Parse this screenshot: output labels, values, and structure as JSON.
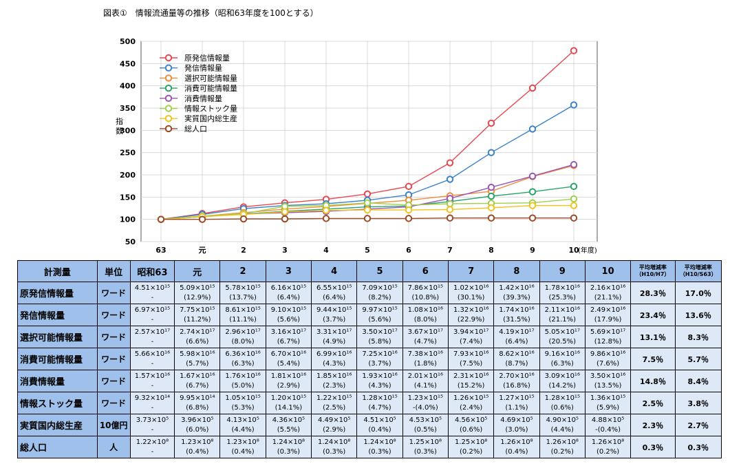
{
  "title": "図表①　情報流通量等の推移（昭和63年度を100とする）",
  "chart_data": {
    "type": "line",
    "x": [
      "63",
      "元",
      "2",
      "3",
      "4",
      "5",
      "6",
      "7",
      "8",
      "9",
      "10"
    ],
    "x_unit": "(年度)",
    "ylabel": "指数",
    "ylim": [
      50,
      500
    ],
    "yticks": [
      50,
      100,
      150,
      200,
      250,
      300,
      350,
      400,
      450,
      500
    ],
    "grid": true,
    "legend_position": "top-left",
    "series": [
      {
        "name": "原発信情報量",
        "color": "#e8474f",
        "values": [
          100,
          113,
          128,
          137,
          145,
          157,
          174,
          227,
          316,
          395,
          479
        ]
      },
      {
        "name": "発信情報量",
        "color": "#3b82c9",
        "values": [
          100,
          111,
          124,
          131,
          135,
          143,
          155,
          190,
          250,
          303,
          357
        ]
      },
      {
        "name": "選択可能情報量",
        "color": "#f08c3a",
        "values": [
          100,
          107,
          115,
          123,
          129,
          136,
          143,
          153,
          163,
          196,
          221
        ]
      },
      {
        "name": "消費可能情報量",
        "color": "#2aa36b",
        "values": [
          100,
          106,
          112,
          118,
          123,
          128,
          130,
          140,
          152,
          162,
          174
        ]
      },
      {
        "name": "消費情報量",
        "color": "#9a55b5",
        "values": [
          100,
          106,
          112,
          115,
          118,
          123,
          128,
          147,
          172,
          197,
          223
        ]
      },
      {
        "name": "情報ストック量",
        "color": "#a2cf4a",
        "values": [
          100,
          107,
          113,
          129,
          131,
          137,
          132,
          135,
          136,
          137,
          146
        ]
      },
      {
        "name": "実質国内総生産",
        "color": "#f2c21b",
        "values": [
          100,
          106,
          111,
          117,
          120,
          121,
          121,
          122,
          126,
          131,
          131
        ]
      },
      {
        "name": "総人口",
        "color": "#9b4a25",
        "values": [
          100,
          100,
          101,
          101,
          102,
          102,
          102,
          103,
          103,
          103,
          103
        ]
      }
    ]
  },
  "table": {
    "headers": {
      "label": "計測量",
      "unit": "単位",
      "years": [
        "昭和63",
        "元",
        "2",
        "3",
        "4",
        "5",
        "6",
        "7",
        "8",
        "9",
        "10"
      ],
      "avg1": [
        "平均増減率",
        "（H10/H7）"
      ],
      "avg2": [
        "平均増減率",
        "（H10/S63）"
      ]
    },
    "rows": [
      {
        "label": "原発信情報量",
        "unit": "ワード",
        "cells": [
          [
            "4.51×10¹⁵",
            "-"
          ],
          [
            "5.09×10¹⁵",
            "(12.9%)"
          ],
          [
            "5.78×10¹⁵",
            "(13.7%)"
          ],
          [
            "6.16×10¹⁵",
            "(6.4%)"
          ],
          [
            "6.55×10¹⁵",
            "(6.4%)"
          ],
          [
            "7.09×10¹⁵",
            "(8.2%)"
          ],
          [
            "7.86×10¹⁵",
            "(10.8%)"
          ],
          [
            "1.02×10¹⁶",
            "(30.1%)"
          ],
          [
            "1.42×10¹⁶",
            "(39.3%)"
          ],
          [
            "1.78×10¹⁶",
            "(25.3%)"
          ],
          [
            "2.16×10¹⁶",
            "(21.1%)"
          ]
        ],
        "avg1": "28.3％",
        "avg2": "17.0％"
      },
      {
        "label": "発信情報量",
        "unit": "ワード",
        "cells": [
          [
            "6.97×10¹⁵",
            "-"
          ],
          [
            "7.75×10¹⁵",
            "(11.2%)"
          ],
          [
            "8.61×10¹⁵",
            "(11.1%)"
          ],
          [
            "9.10×10¹⁵",
            "(5.6%)"
          ],
          [
            "9.44×10¹⁵",
            "(3.7%)"
          ],
          [
            "9.97×10¹⁵",
            "(5.6%)"
          ],
          [
            "1.08×10¹⁶",
            "(8.0%)"
          ],
          [
            "1.32×10¹⁶",
            "(22.9%)"
          ],
          [
            "1.74×10¹⁶",
            "(31.5%)"
          ],
          [
            "2.11×10¹⁶",
            "(21.1%)"
          ],
          [
            "2.49×10¹⁶",
            "(17.9%)"
          ]
        ],
        "avg1": "23.4％",
        "avg2": "13.6％"
      },
      {
        "label": "選択可能情報量",
        "unit": "ワード",
        "cells": [
          [
            "2.57×10¹⁷",
            "-"
          ],
          [
            "2.74×10¹⁷",
            "(6.6%)"
          ],
          [
            "2.96×10¹⁷",
            "(8.0%)"
          ],
          [
            "3.16×10¹⁷",
            "(6.7%)"
          ],
          [
            "3.31×10¹⁷",
            "(4.9%)"
          ],
          [
            "3.50×10¹⁷",
            "(5.8%)"
          ],
          [
            "3.67×10¹⁷",
            "(4.7%)"
          ],
          [
            "3.94×10¹⁷",
            "(7.4%)"
          ],
          [
            "4.19×10¹⁷",
            "(6.4%)"
          ],
          [
            "5.05×10¹⁷",
            "(20.5%)"
          ],
          [
            "5.69×10¹⁷",
            "(12.8%)"
          ]
        ],
        "avg1": "13.1％",
        "avg2": "8.3％"
      },
      {
        "label": "消費可能情報量",
        "unit": "ワード",
        "cells": [
          [
            "5.66×10¹⁶",
            "-"
          ],
          [
            "5.98×10¹⁶",
            "(5.7%)"
          ],
          [
            "6.36×10¹⁶",
            "(6.3%)"
          ],
          [
            "6.70×10¹⁶",
            "(5.4%)"
          ],
          [
            "6.99×10¹⁶",
            "(4.3%)"
          ],
          [
            "7.25×10¹⁶",
            "(3.7%)"
          ],
          [
            "7.38×10¹⁶",
            "(1.8%)"
          ],
          [
            "7.93×10¹⁶",
            "(7.5%)"
          ],
          [
            "8.62×10¹⁶",
            "(8.7%)"
          ],
          [
            "9.16×10¹⁶",
            "(6.3%)"
          ],
          [
            "9.86×10¹⁶",
            "(7.6%)"
          ]
        ],
        "avg1": "7.5％",
        "avg2": "5.7％"
      },
      {
        "label": "消費情報量",
        "unit": "ワード",
        "cells": [
          [
            "1.57×10¹⁶",
            "-"
          ],
          [
            "1.67×10¹⁶",
            "(6.7%)"
          ],
          [
            "1.76×10¹⁶",
            "(5.0%)"
          ],
          [
            "1.81×10¹⁶",
            "(2.9%)"
          ],
          [
            "1.85×10¹⁶",
            "(2.3%)"
          ],
          [
            "1.93×10¹⁶",
            "(4.3%)"
          ],
          [
            "2.01×10¹⁶",
            "(4.1%)"
          ],
          [
            "2.31×10¹⁶",
            "(15.2%)"
          ],
          [
            "2.70×10¹⁶",
            "(16.8%)"
          ],
          [
            "3.09×10¹⁶",
            "(14.2%)"
          ],
          [
            "3.50×10¹⁶",
            "(13.5%)"
          ]
        ],
        "avg1": "14.8％",
        "avg2": "8.4％"
      },
      {
        "label": "情報ストック量",
        "unit": "ワード",
        "cells": [
          [
            "9.32×10¹⁴",
            "-"
          ],
          [
            "9.95×10¹⁴",
            "(6.8%)"
          ],
          [
            "1.05×10¹⁵",
            "(5.3%)"
          ],
          [
            "1.20×10¹⁵",
            "(14.1%)"
          ],
          [
            "1.22×10¹⁵",
            "(2.5%)"
          ],
          [
            "1.28×10¹⁵",
            "(4.7%)"
          ],
          [
            "1.23×10¹⁵",
            "-(4.0%)"
          ],
          [
            "1.26×10¹⁵",
            "(2.4%)"
          ],
          [
            "1.27×10¹⁵",
            "(1.1%)"
          ],
          [
            "1.28×10¹⁵",
            "(0.6%)"
          ],
          [
            "1.36×10¹⁵",
            "(5.9%)"
          ]
        ],
        "avg1": "2.5％",
        "avg2": "3.8％"
      },
      {
        "label": "実質国内総生産",
        "unit": "10億円",
        "cells": [
          [
            "3.73×10⁵",
            "-"
          ],
          [
            "3.96×10⁵",
            "(6.0%)"
          ],
          [
            "4.13×10⁵",
            "(4.4%)"
          ],
          [
            "4.36×10⁵",
            "(5.5%)"
          ],
          [
            "4.49×10⁵",
            "(2.9%)"
          ],
          [
            "4.51×10⁵",
            "(0.4%)"
          ],
          [
            "4.53×10⁵",
            "(0.5%)"
          ],
          [
            "4.56×10⁵",
            "(0.6%)"
          ],
          [
            "4.69×10⁵",
            "(3.0%)"
          ],
          [
            "4.90×10⁵",
            "(4.4%)"
          ],
          [
            "4.88×10⁵",
            "-(0.4%)"
          ]
        ],
        "avg1": "2.3％",
        "avg2": "2.7％"
      },
      {
        "label": "総人口",
        "unit": "人",
        "cells": [
          [
            "1.22×10⁸",
            "-"
          ],
          [
            "1.23×10⁸",
            "(0.4%)"
          ],
          [
            "1.23×10⁸",
            "(0.4%)"
          ],
          [
            "1.24×10⁸",
            "(0.3%)"
          ],
          [
            "1.24×10⁸",
            "(0.3%)"
          ],
          [
            "1.24×10⁸",
            "(0.3%)"
          ],
          [
            "1.25×10⁸",
            "(0.3%)"
          ],
          [
            "1.25×10⁸",
            "(0.2%)"
          ],
          [
            "1.26×10⁸",
            "(0.4%)"
          ],
          [
            "1.26×10⁸",
            "(0.2%)"
          ],
          [
            "1.26×10⁸",
            "(0.2%)"
          ]
        ],
        "avg1": "0.3％",
        "avg2": "0.3％"
      }
    ]
  }
}
